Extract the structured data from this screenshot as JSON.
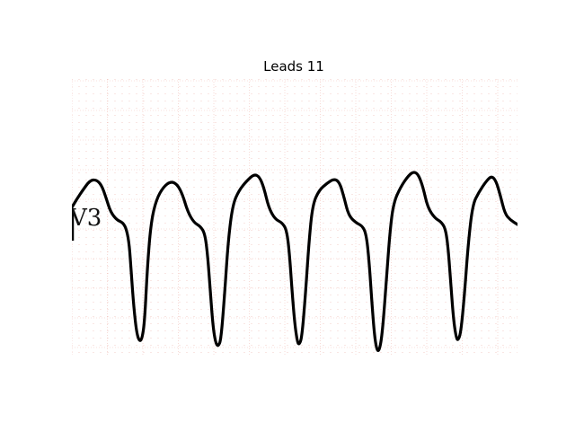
{
  "title": "Leads 11",
  "lead_label": "V3",
  "colors": {
    "grid_minor": "#e8a39a",
    "grid_major": "#f2c4bd",
    "trace": "#000000",
    "background": "#ffffff"
  }
}
